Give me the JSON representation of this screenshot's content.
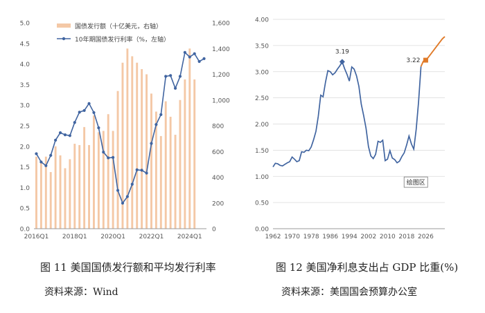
{
  "figures": [
    {
      "caption": "图 11  美国国债发行额和平均发行利率",
      "source": "资料来源：Wind"
    },
    {
      "caption": "图 12  美国净利息支出占 GDP 比重(%)",
      "source": "资料来源：美国国会预算办公室"
    }
  ],
  "colors": {
    "bar": "#F4C8A6",
    "line": "#4064A0",
    "projection": "#E07A28",
    "axis": "#999999",
    "grid": "#d9d9d9"
  },
  "chart_data": [
    {
      "type": "bar+line",
      "title": "",
      "x_tick_labels": [
        "2016Q1",
        "2018Q1",
        "2020Q1",
        "2022Q1",
        "2024Q1"
      ],
      "x_tick_index": [
        0,
        8,
        16,
        24,
        32
      ],
      "y_left_ticks": [
        "0.0",
        "0.5",
        "1.0",
        "1.5",
        "2.0",
        "2.5",
        "3.0",
        "3.5",
        "4.0",
        "4.5",
        "5.0"
      ],
      "y_right_ticks": [
        "0",
        "200",
        "400",
        "600",
        "800",
        "1,000",
        "1,200",
        "1,400",
        "1,600"
      ],
      "ylim_left": [
        0,
        5
      ],
      "ylim_right": [
        0,
        1600
      ],
      "legend_position": "top-center",
      "series": [
        {
          "name": "国债发行额（十亿美元，右轴）",
          "type": "bar",
          "axis": "right",
          "values": [
            560,
            530,
            560,
            440,
            640,
            570,
            470,
            540,
            660,
            650,
            790,
            650,
            880,
            750,
            760,
            890,
            760,
            1070,
            1290,
            1400,
            1340,
            1290,
            1240,
            1200,
            1050,
            910,
            720,
            990,
            870,
            730,
            1000,
            1160,
            1400,
            1160
          ]
        },
        {
          "name": "10年期国债发行利率（%，左轴）",
          "type": "line",
          "axis": "left",
          "values": [
            1.82,
            1.62,
            1.53,
            1.78,
            2.15,
            2.33,
            2.28,
            2.26,
            2.58,
            2.83,
            2.87,
            3.04,
            2.82,
            2.45,
            1.86,
            1.72,
            1.73,
            0.93,
            0.62,
            0.78,
            1.08,
            1.43,
            1.42,
            1.35,
            2.07,
            2.53,
            2.77,
            3.7,
            3.72,
            3.41,
            3.7,
            4.28,
            4.17,
            4.25,
            4.06,
            4.13
          ]
        }
      ]
    },
    {
      "type": "line",
      "title": "",
      "x_ticks": [
        1962,
        1970,
        1978,
        1986,
        1994,
        2002,
        2010,
        2018,
        2026
      ],
      "x_tick_labels": [
        "1962",
        "1970",
        "1978",
        "1986",
        "1994",
        "2002",
        "2010",
        "2018",
        "2026"
      ],
      "y_ticks": [
        "0.00",
        "0.50",
        "1.00",
        "1.50",
        "2.00",
        "2.50",
        "3.00",
        "3.50",
        "4.00"
      ],
      "xlim": [
        1962,
        2034
      ],
      "ylim": [
        0,
        4
      ],
      "annotations": [
        {
          "text": "3.19",
          "x": 1991,
          "y": 3.19
        },
        {
          "text": "3.22",
          "x": 2024,
          "y": 3.22
        },
        {
          "text": "绘图区",
          "x": 2021,
          "y": 0.87
        }
      ],
      "series": [
        {
          "name": "historical",
          "x": [
            1962,
            1963,
            1964,
            1965,
            1966,
            1967,
            1968,
            1969,
            1970,
            1971,
            1972,
            1973,
            1974,
            1975,
            1976,
            1977,
            1978,
            1979,
            1980,
            1981,
            1982,
            1983,
            1984,
            1985,
            1986,
            1987,
            1988,
            1989,
            1990,
            1991,
            1992,
            1993,
            1994,
            1995,
            1996,
            1997,
            1998,
            1999,
            2000,
            2001,
            2002,
            2003,
            2004,
            2005,
            2006,
            2007,
            2008,
            2009,
            2010,
            2011,
            2012,
            2013,
            2014,
            2015,
            2016,
            2017,
            2018,
            2019,
            2020,
            2021,
            2022,
            2023,
            2024
          ],
          "y": [
            1.18,
            1.25,
            1.24,
            1.21,
            1.2,
            1.23,
            1.26,
            1.28,
            1.37,
            1.33,
            1.28,
            1.3,
            1.47,
            1.46,
            1.5,
            1.49,
            1.56,
            1.7,
            1.86,
            2.15,
            2.55,
            2.52,
            2.8,
            3.02,
            3.0,
            2.94,
            2.98,
            3.05,
            3.11,
            3.19,
            3.06,
            2.95,
            2.82,
            3.09,
            3.05,
            2.92,
            2.72,
            2.38,
            2.16,
            1.92,
            1.57,
            1.39,
            1.34,
            1.42,
            1.67,
            1.65,
            1.69,
            1.3,
            1.33,
            1.49,
            1.35,
            1.32,
            1.26,
            1.29,
            1.38,
            1.45,
            1.6,
            1.77,
            1.62,
            1.52,
            1.9,
            2.42,
            3.1
          ]
        },
        {
          "name": "projection",
          "x": [
            2024,
            2025,
            2026,
            2027,
            2028,
            2029,
            2030,
            2031,
            2032,
            2033,
            2034
          ],
          "y": [
            3.1,
            3.2,
            3.22,
            3.27,
            3.33,
            3.39,
            3.45,
            3.51,
            3.57,
            3.63,
            3.67
          ]
        }
      ]
    }
  ]
}
